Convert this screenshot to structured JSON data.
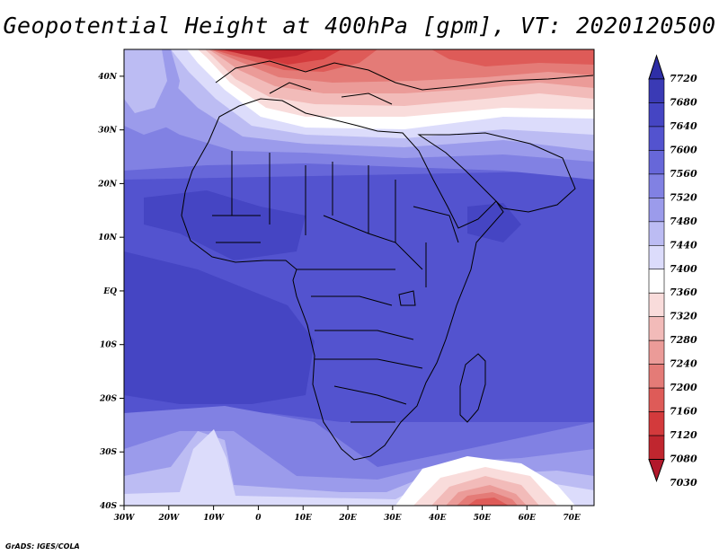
{
  "title": "Geopotential Height at 400hPa [gpm], VT: 2020120500",
  "credit": "GrADS: IGES/COLA",
  "colors": {
    "c7030": "#b2182b",
    "c7080": "#c0262f",
    "c7120": "#d33a3c",
    "c7160": "#de5b58",
    "c7200": "#e47b77",
    "c7240": "#eb9b98",
    "c7280": "#f2bbb9",
    "c7320": "#f9dcdb",
    "c7360": "#ffffff",
    "c7400": "#dcdcfb",
    "c7440": "#bcbcf3",
    "c7480": "#9b9beb",
    "c7520": "#8181e3",
    "c7560": "#6767d9",
    "c7600": "#5353cf",
    "c7640": "#4545c3",
    "c7680": "#3a3ab5",
    "c7720": "#2e2ea6",
    "land_border": "#000000"
  },
  "chart_data": {
    "type": "heatmap",
    "title": "Geopotential Height at 400hPa [gpm], VT: 2020120500",
    "variable_units": "gpm",
    "x_ticks": [
      "30W",
      "20W",
      "10W",
      "0",
      "10E",
      "20E",
      "30E",
      "40E",
      "50E",
      "60E",
      "70E"
    ],
    "x_tick_values": [
      -30,
      -20,
      -10,
      0,
      10,
      20,
      30,
      40,
      50,
      60,
      70
    ],
    "y_ticks": [
      "40S",
      "30S",
      "20S",
      "10S",
      "EQ",
      "10N",
      "20N",
      "30N",
      "40N"
    ],
    "y_tick_values": [
      -40,
      -30,
      -20,
      -10,
      0,
      10,
      20,
      30,
      40
    ],
    "xlim": [
      -30,
      75
    ],
    "ylim": [
      -40,
      45
    ],
    "colorbar_levels": [
      "7720",
      "7680",
      "7640",
      "7600",
      "7560",
      "7520",
      "7480",
      "7440",
      "7400",
      "7360",
      "7320",
      "7280",
      "7240",
      "7200",
      "7160",
      "7120",
      "7080",
      "7030"
    ]
  }
}
